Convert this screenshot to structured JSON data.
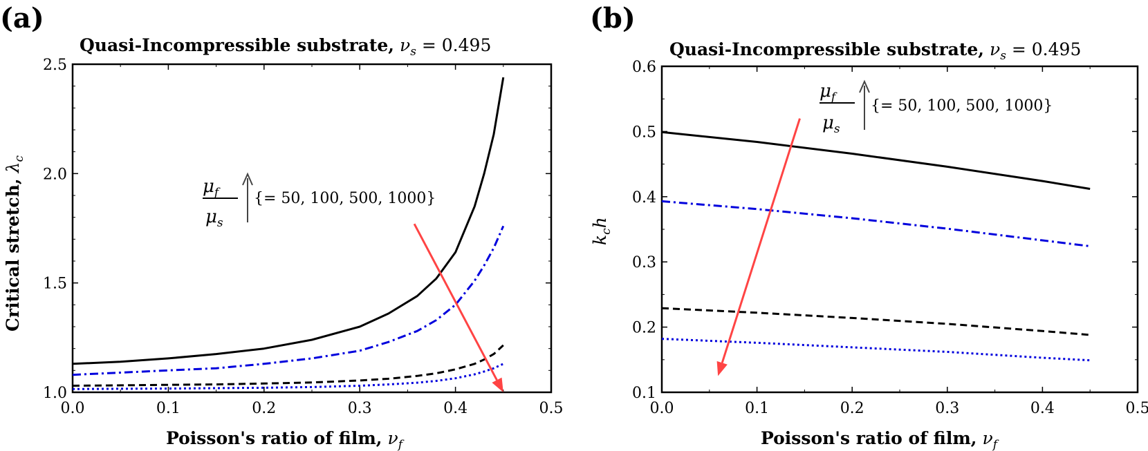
{
  "panels": [
    {
      "label": "(a)",
      "title_bold": "Quasi-Incompressible substrate,",
      "title_math": "ν",
      "title_sub": "s",
      "title_tail": " = 0.495",
      "xlabel_bold": "Poisson's ratio of film,",
      "xlabel_math": "ν",
      "xlabel_sub": "f",
      "ylabel_bold": "Critical stretch,",
      "ylabel_math": "λ",
      "ylabel_sub": "c",
      "annotation": {
        "num": "μ",
        "num_sub": "f",
        "den": "μ",
        "den_sub": "s",
        "values": "{= 50, 100, 500, 1000}"
      }
    },
    {
      "label": "(b)",
      "title_bold": "Quasi-Incompressible substrate,",
      "title_math": "ν",
      "title_sub": "s",
      "title_tail": " = 0.495",
      "xlabel_bold": "Poisson's ratio of film,",
      "xlabel_math": "ν",
      "xlabel_sub": "f",
      "ylabel_math": "k",
      "ylabel_sub": "c",
      "ylabel_tail": "h",
      "annotation": {
        "num": "μ",
        "num_sub": "f",
        "den": "μ",
        "den_sub": "s",
        "values": "{= 50, 100, 500, 1000}"
      }
    }
  ],
  "chart_data": [
    {
      "type": "line",
      "xlim": [
        0,
        0.5
      ],
      "ylim": [
        1.0,
        2.5
      ],
      "xticks": [
        "0.0",
        "0.1",
        "0.2",
        "0.3",
        "0.4",
        "0.5"
      ],
      "yticks": [
        "1.0",
        "1.5",
        "2.0",
        "2.5"
      ],
      "grid": false,
      "series": [
        {
          "style": "solid",
          "color": "#000000",
          "x": [
            0,
            0.05,
            0.1,
            0.15,
            0.2,
            0.25,
            0.3,
            0.33,
            0.36,
            0.38,
            0.4,
            0.42,
            0.43,
            0.44,
            0.45
          ],
          "y": [
            1.13,
            1.14,
            1.155,
            1.175,
            1.2,
            1.24,
            1.3,
            1.36,
            1.44,
            1.52,
            1.64,
            1.85,
            2.0,
            2.18,
            2.44
          ]
        },
        {
          "style": "dashdot",
          "color": "#0000dd",
          "x": [
            0,
            0.05,
            0.1,
            0.15,
            0.2,
            0.25,
            0.3,
            0.33,
            0.36,
            0.38,
            0.4,
            0.42,
            0.43,
            0.44,
            0.45
          ],
          "y": [
            1.08,
            1.09,
            1.1,
            1.11,
            1.13,
            1.155,
            1.19,
            1.23,
            1.28,
            1.33,
            1.4,
            1.51,
            1.58,
            1.66,
            1.76
          ]
        },
        {
          "style": "dashed",
          "color": "#000000",
          "x": [
            0,
            0.05,
            0.1,
            0.15,
            0.2,
            0.25,
            0.3,
            0.33,
            0.36,
            0.38,
            0.4,
            0.42,
            0.43,
            0.44,
            0.45
          ],
          "y": [
            1.03,
            1.032,
            1.034,
            1.036,
            1.04,
            1.045,
            1.054,
            1.062,
            1.075,
            1.087,
            1.105,
            1.13,
            1.15,
            1.175,
            1.215
          ]
        },
        {
          "style": "dotted",
          "color": "#0000dd",
          "x": [
            0,
            0.05,
            0.1,
            0.15,
            0.2,
            0.25,
            0.3,
            0.33,
            0.36,
            0.38,
            0.4,
            0.42,
            0.43,
            0.44,
            0.45
          ],
          "y": [
            1.015,
            1.016,
            1.017,
            1.019,
            1.021,
            1.024,
            1.03,
            1.036,
            1.044,
            1.052,
            1.064,
            1.082,
            1.095,
            1.11,
            1.13
          ]
        }
      ],
      "arrow": {
        "from": [
          0.357,
          1.77
        ],
        "to": [
          0.45,
          1.0
        ],
        "color": "#ff4444"
      },
      "annotation_anchor": [
        0.17,
        1.9
      ]
    },
    {
      "type": "line",
      "xlim": [
        0,
        0.5
      ],
      "ylim": [
        0.1,
        0.6
      ],
      "xticks": [
        "0.0",
        "0.1",
        "0.2",
        "0.3",
        "0.4",
        "0.5"
      ],
      "yticks": [
        "0.1",
        "0.2",
        "0.3",
        "0.4",
        "0.5",
        "0.6"
      ],
      "grid": false,
      "series": [
        {
          "style": "solid",
          "color": "#000000",
          "x": [
            0,
            0.1,
            0.2,
            0.3,
            0.4,
            0.45
          ],
          "y": [
            0.499,
            0.484,
            0.466,
            0.446,
            0.424,
            0.412
          ]
        },
        {
          "style": "dashdot",
          "color": "#0000dd",
          "x": [
            0,
            0.1,
            0.2,
            0.3,
            0.4,
            0.45
          ],
          "y": [
            0.393,
            0.381,
            0.367,
            0.351,
            0.333,
            0.324
          ]
        },
        {
          "style": "dashed",
          "color": "#000000",
          "x": [
            0,
            0.1,
            0.2,
            0.3,
            0.4,
            0.45
          ],
          "y": [
            0.229,
            0.222,
            0.214,
            0.205,
            0.194,
            0.188
          ]
        },
        {
          "style": "dotted",
          "color": "#0000dd",
          "x": [
            0,
            0.1,
            0.2,
            0.3,
            0.4,
            0.45
          ],
          "y": [
            0.182,
            0.176,
            0.169,
            0.162,
            0.153,
            0.149
          ]
        }
      ],
      "arrow": {
        "from": [
          0.145,
          0.52
        ],
        "to": [
          0.059,
          0.125
        ],
        "color": "#ff4444"
      },
      "annotation_anchor": [
        0.17,
        0.565
      ]
    }
  ]
}
